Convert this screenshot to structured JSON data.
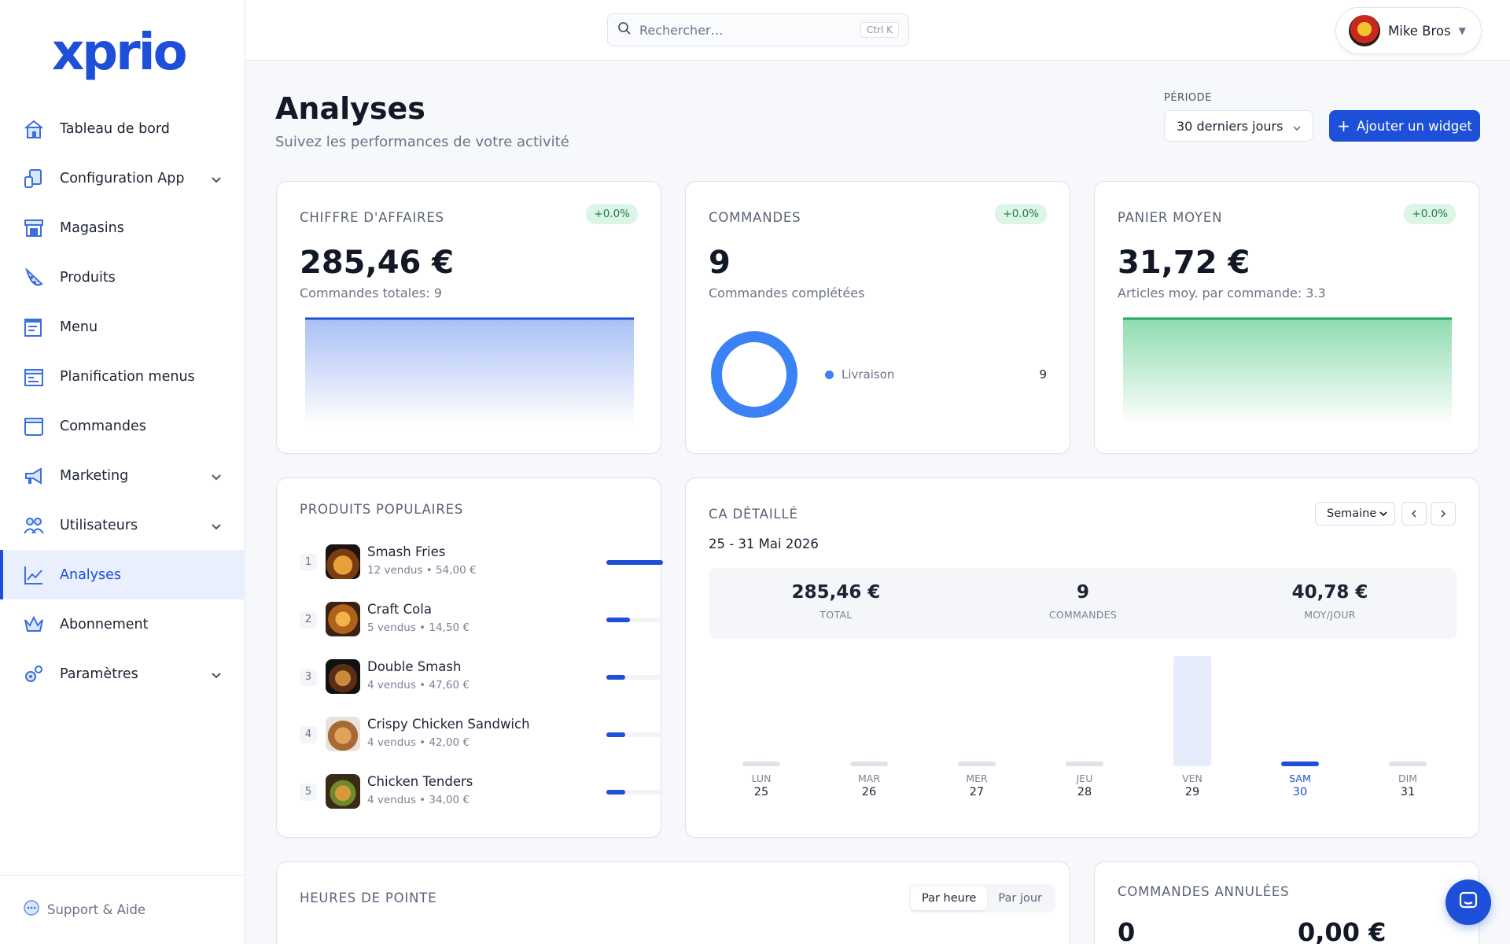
{
  "brand": {
    "logo": "xprio",
    "accent": "#1d4fd8"
  },
  "sidebar": {
    "items": [
      {
        "label": "Tableau de bord",
        "icon": "home-icon",
        "expandable": false
      },
      {
        "label": "Configuration App",
        "icon": "devices-icon",
        "expandable": true
      },
      {
        "label": "Magasins",
        "icon": "store-icon",
        "expandable": false
      },
      {
        "label": "Produits",
        "icon": "pizza-icon",
        "expandable": false
      },
      {
        "label": "Menu",
        "icon": "menu-edit-icon",
        "expandable": false
      },
      {
        "label": "Planification menus",
        "icon": "calendar-icon",
        "expandable": false
      },
      {
        "label": "Commandes",
        "icon": "orders-icon",
        "expandable": false
      },
      {
        "label": "Marketing",
        "icon": "megaphone-icon",
        "expandable": true
      },
      {
        "label": "Utilisateurs",
        "icon": "users-icon",
        "expandable": true
      },
      {
        "label": "Analyses",
        "icon": "chart-line-icon",
        "expandable": false,
        "active": true
      },
      {
        "label": "Abonnement",
        "icon": "crown-icon",
        "expandable": false
      },
      {
        "label": "Paramètres",
        "icon": "gears-icon",
        "expandable": true
      }
    ],
    "support_label": "Support & Aide"
  },
  "topbar": {
    "search_placeholder": "Rechercher…",
    "search_shortcut": "Ctrl K",
    "user_name": "Mike Bros"
  },
  "header": {
    "title": "Analyses",
    "subtitle": "Suivez les performances de votre activité",
    "period_label": "PÉRIODE",
    "period_value": "30 derniers jours",
    "add_widget_label": "Ajouter un widget"
  },
  "kpis": {
    "revenue": {
      "title": "CHIFFRE D'AFFAIRES",
      "badge": "+0.0%",
      "value": "285,46 €",
      "sub": "Commandes totales: 9"
    },
    "orders": {
      "title": "COMMANDES",
      "badge": "+0.0%",
      "value": "9",
      "sub": "Commandes complétées",
      "legend_label": "Livraison",
      "legend_value": "9"
    },
    "basket": {
      "title": "PANIER MOYEN",
      "badge": "+0.0%",
      "value": "31,72 €",
      "sub": "Articles moy. par commande: 3.3"
    }
  },
  "popular": {
    "title": "PRODUITS POPULAIRES",
    "items": [
      {
        "rank": "1",
        "name": "Smash Fries",
        "meta": "12 vendus • 54,00 €",
        "share": 1.0
      },
      {
        "rank": "2",
        "name": "Craft Cola",
        "meta": "5 vendus • 14,50 €",
        "share": 0.42
      },
      {
        "rank": "3",
        "name": "Double Smash",
        "meta": "4 vendus • 47,60 €",
        "share": 0.33
      },
      {
        "rank": "4",
        "name": "Crispy Chicken Sandwich",
        "meta": "4 vendus • 42,00 €",
        "share": 0.33
      },
      {
        "rank": "5",
        "name": "Chicken Tenders",
        "meta": "4 vendus • 34,00 €",
        "share": 0.33
      }
    ]
  },
  "detail": {
    "title": "CA DÉTAILLÉ",
    "granularity": "Semaine",
    "range": "25 - 31 Mai 2026",
    "stats": [
      {
        "value": "285,46 €",
        "label": "TOTAL"
      },
      {
        "value": "9",
        "label": "COMMANDES"
      },
      {
        "value": "40,78 €",
        "label": "MOY/JOUR"
      }
    ],
    "days": [
      {
        "name": "LUN",
        "date": "25"
      },
      {
        "name": "MAR",
        "date": "26"
      },
      {
        "name": "MER",
        "date": "27"
      },
      {
        "name": "JEU",
        "date": "28"
      },
      {
        "name": "VEN",
        "date": "29"
      },
      {
        "name": "SAM",
        "date": "30",
        "selected": true
      },
      {
        "name": "DIM",
        "date": "31"
      }
    ]
  },
  "chart_data": {
    "type": "bar",
    "categories": [
      "LUN 25",
      "MAR 26",
      "MER 27",
      "JEU 28",
      "VEN 29",
      "SAM 30",
      "DIM 31"
    ],
    "values": [
      0,
      0,
      0,
      0,
      285.46,
      0,
      0
    ],
    "title": "CA DÉTAILLÉ",
    "highlighted": "SAM 30",
    "colors": {
      "bar": "#e6ecfb",
      "empty": "#dfe2e8",
      "selected": "#1d4fd8"
    }
  },
  "peak": {
    "title": "HEURES DE POINTE",
    "tabs": [
      "Par heure",
      "Par jour"
    ],
    "active_tab": "Par heure"
  },
  "cancelled": {
    "title": "COMMANDES ANNULÉES",
    "count": "0",
    "amount": "0,00 €"
  }
}
